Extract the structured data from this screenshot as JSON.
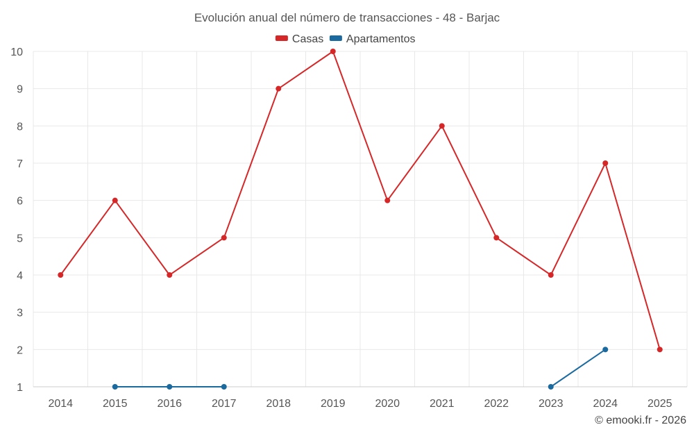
{
  "chart_data": {
    "type": "line",
    "title": "Evolución anual del número de transacciones - 48 - Barjac",
    "categories": [
      "2014",
      "2015",
      "2016",
      "2017",
      "2018",
      "2019",
      "2020",
      "2021",
      "2022",
      "2023",
      "2024",
      "2025"
    ],
    "ylim": [
      1,
      10
    ],
    "yticks": [
      1,
      2,
      3,
      4,
      5,
      6,
      7,
      8,
      9,
      10
    ],
    "grid": true,
    "legend_position": "top-center",
    "series": [
      {
        "name": "Casas",
        "color": "#d62728",
        "values": [
          4,
          6,
          4,
          5,
          9,
          10,
          6,
          8,
          5,
          4,
          7,
          2
        ]
      },
      {
        "name": "Apartamentos",
        "color": "#1a6aa0",
        "values": [
          null,
          1,
          1,
          1,
          null,
          null,
          null,
          null,
          null,
          1,
          2,
          null
        ]
      }
    ]
  },
  "footer": "© emooki.fr - 2026"
}
